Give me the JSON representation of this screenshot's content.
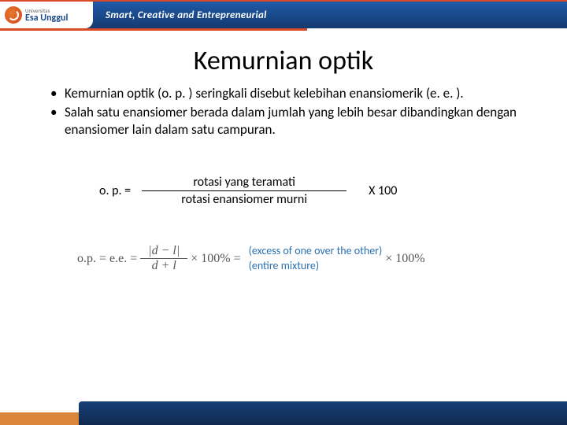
{
  "brand": {
    "logo_small": "Universitas",
    "logo_main": "Esa Unggul",
    "tagline": "Smart, Creative and Entrepreneurial",
    "colors": {
      "header_bg": "#1a4a8a",
      "accent": "#d94a2b",
      "footer_orange": "#d9863a",
      "annot_blue": "#2a6fb0"
    }
  },
  "slide": {
    "title": "Kemurnian optik",
    "bullets": [
      "Kemurnian optik (o. p. ) seringkali disebut kelebihan enansiomerik (e. e. ).",
      "Salah satu enansiomer berada dalam jumlah yang lebih besar dibandingkan dengan enansiomer lain dalam satu campuran."
    ]
  },
  "formula_text": {
    "lhs": "o. p.   =",
    "numerator": "rotasi yang teramati",
    "denominator": "rotasi enansiomer murni",
    "multiplier": "X  100"
  },
  "formula_math": {
    "lhs": "o.p.  =  e.e.  =",
    "frac_num": "|d − l|",
    "frac_den": "d + l",
    "times_pct": "× 100% =",
    "annot_top": "(excess of one over the other)",
    "annot_bottom": "(entire mixture)",
    "tail_pct": "× 100%"
  }
}
